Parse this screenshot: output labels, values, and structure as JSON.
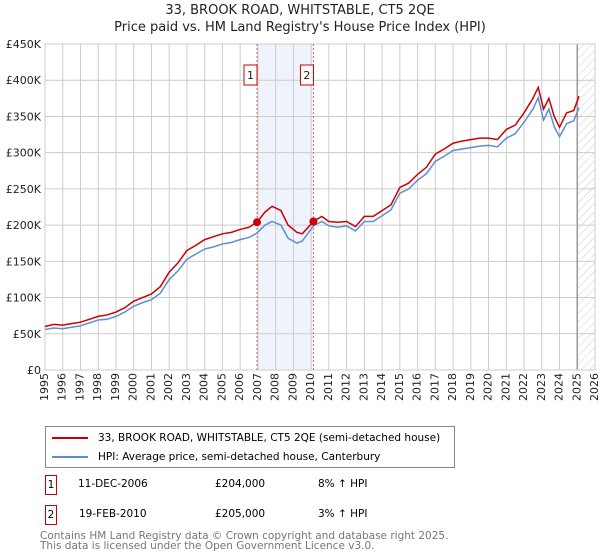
{
  "chart_data": {
    "type": "line",
    "title": "33, BROOK ROAD, WHITSTABLE, CT5 2QE",
    "subtitle": "Price paid vs. HM Land Registry's House Price Index (HPI)",
    "xlim": [
      1995,
      2026
    ],
    "ylim": [
      0,
      450000
    ],
    "x_ticks": [
      "1995",
      "1996",
      "1997",
      "1998",
      "1999",
      "2000",
      "2001",
      "2002",
      "2003",
      "2004",
      "2005",
      "2006",
      "2007",
      "2008",
      "2009",
      "2010",
      "2011",
      "2012",
      "2013",
      "2014",
      "2015",
      "2016",
      "2017",
      "2018",
      "2019",
      "2020",
      "2021",
      "2022",
      "2023",
      "2024",
      "2025",
      "2026"
    ],
    "y_ticks": [
      {
        "v": 0,
        "l": "£0"
      },
      {
        "v": 50000,
        "l": "£50K"
      },
      {
        "v": 100000,
        "l": "£100K"
      },
      {
        "v": 150000,
        "l": "£150K"
      },
      {
        "v": 200000,
        "l": "£200K"
      },
      {
        "v": 250000,
        "l": "£250K"
      },
      {
        "v": 300000,
        "l": "£300K"
      },
      {
        "v": 350000,
        "l": "£350K"
      },
      {
        "v": 400000,
        "l": "£400K"
      },
      {
        "v": 450000,
        "l": "£450K"
      }
    ],
    "grid": true,
    "series": [
      {
        "name": "33, BROOK ROAD, WHITSTABLE, CT5 2QE (semi-detached house)",
        "color": "#cc0000",
        "x": [
          1995,
          1995.5,
          1996,
          1996.5,
          1997,
          1997.5,
          1998,
          1998.5,
          1999,
          1999.5,
          2000,
          2000.5,
          2001,
          2001.5,
          2002,
          2002.5,
          2003,
          2003.5,
          2004,
          2004.5,
          2005,
          2005.5,
          2006,
          2006.5,
          2006.95,
          2007.4,
          2007.8,
          2008.3,
          2008.7,
          2009.2,
          2009.5,
          2010.13,
          2010.6,
          2011,
          2011.5,
          2012,
          2012.5,
          2013,
          2013.5,
          2014,
          2014.5,
          2015,
          2015.5,
          2016,
          2016.5,
          2017,
          2017.5,
          2018,
          2018.5,
          2019,
          2019.5,
          2020,
          2020.5,
          2021,
          2021.5,
          2022,
          2022.5,
          2022.8,
          2023.1,
          2023.4,
          2023.7,
          2024,
          2024.4,
          2024.8,
          2025.1
        ],
        "y": [
          60000,
          63000,
          62000,
          64000,
          66000,
          70000,
          74000,
          76000,
          80000,
          86000,
          95000,
          100000,
          105000,
          115000,
          135000,
          148000,
          165000,
          172000,
          180000,
          184000,
          188000,
          190000,
          194000,
          197000,
          204000,
          218000,
          226000,
          220000,
          200000,
          190000,
          188000,
          205000,
          212000,
          205000,
          204000,
          205000,
          198000,
          212000,
          212000,
          220000,
          228000,
          252000,
          258000,
          270000,
          280000,
          298000,
          305000,
          313000,
          316000,
          318000,
          320000,
          320000,
          318000,
          332000,
          338000,
          355000,
          375000,
          390000,
          360000,
          375000,
          350000,
          335000,
          355000,
          358000,
          378000
        ]
      },
      {
        "name": "HPI: Average price, semi-detached house, Canterbury",
        "color": "#5b8fd1",
        "x": [
          1995,
          1995.5,
          1996,
          1996.5,
          1997,
          1997.5,
          1998,
          1998.5,
          1999,
          1999.5,
          2000,
          2000.5,
          2001,
          2001.5,
          2002,
          2002.5,
          2003,
          2003.5,
          2004,
          2004.5,
          2005,
          2005.5,
          2006,
          2006.5,
          2006.95,
          2007.4,
          2007.8,
          2008.3,
          2008.7,
          2009.2,
          2009.5,
          2010.13,
          2010.6,
          2011,
          2011.5,
          2012,
          2012.5,
          2013,
          2013.5,
          2014,
          2014.5,
          2015,
          2015.5,
          2016,
          2016.5,
          2017,
          2017.5,
          2018,
          2018.5,
          2019,
          2019.5,
          2020,
          2020.5,
          2021,
          2021.5,
          2022,
          2022.5,
          2022.8,
          2023.1,
          2023.4,
          2023.7,
          2024,
          2024.4,
          2024.8,
          2025.1
        ],
        "y": [
          56000,
          58000,
          57000,
          59000,
          61000,
          65000,
          69000,
          70000,
          74000,
          80000,
          88000,
          93000,
          97000,
          106000,
          125000,
          137000,
          153000,
          160000,
          167000,
          170000,
          174000,
          176000,
          180000,
          183000,
          189000,
          200000,
          205000,
          200000,
          182000,
          175000,
          178000,
          199000,
          205000,
          199000,
          197000,
          199000,
          192000,
          205000,
          205000,
          213000,
          221000,
          244000,
          250000,
          262000,
          271000,
          288000,
          295000,
          303000,
          305000,
          307000,
          309000,
          310000,
          308000,
          320000,
          326000,
          342000,
          360000,
          376000,
          345000,
          360000,
          336000,
          322000,
          340000,
          344000,
          362000
        ]
      }
    ],
    "sales": [
      {
        "id": "1",
        "x": 2006.95,
        "y": 204000
      },
      {
        "id": "2",
        "x": 2010.13,
        "y": 205000
      }
    ],
    "shaded_range": [
      2006.95,
      2010.13
    ],
    "hatched_from": 2025.0
  },
  "legend": {
    "red": "33, BROOK ROAD, WHITSTABLE, CT5 2QE (semi-detached house)",
    "blue": "HPI: Average price, semi-detached house, Canterbury"
  },
  "transactions": [
    {
      "id": "1",
      "date": "11-DEC-2006",
      "price": "£204,000",
      "hpi": "8% ↑ HPI"
    },
    {
      "id": "2",
      "date": "19-FEB-2010",
      "price": "£205,000",
      "hpi": "3% ↑ HPI"
    }
  ],
  "footer": {
    "line1": "Contains HM Land Registry data © Crown copyright and database right 2025.",
    "line2": "This data is licensed under the Open Government Licence v3.0."
  }
}
